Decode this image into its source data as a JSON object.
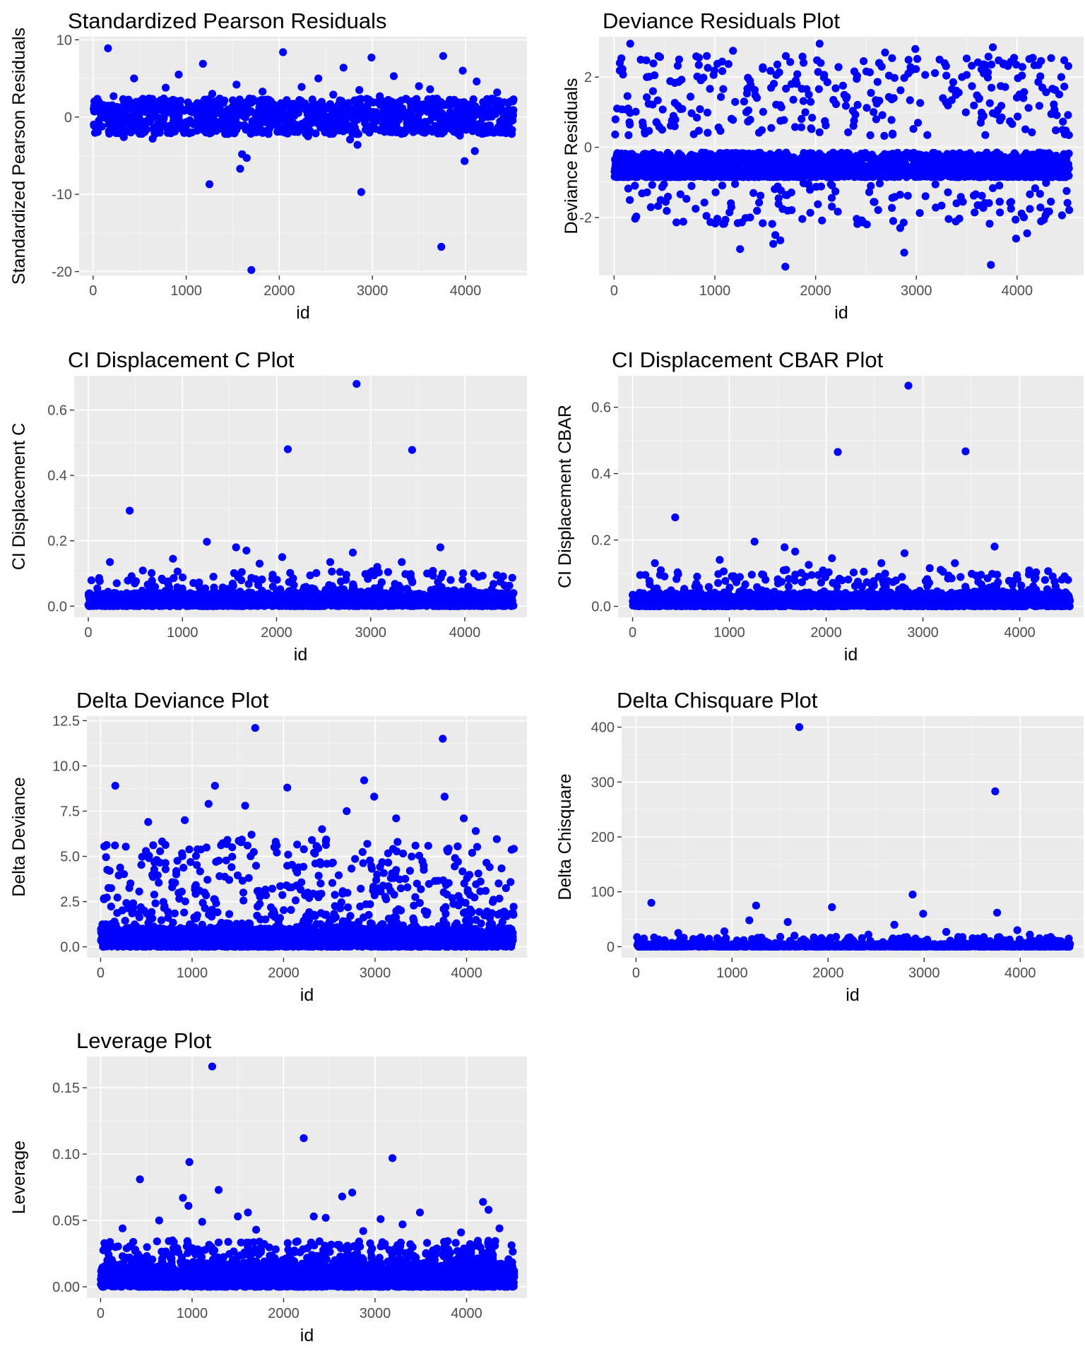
{
  "point_color": "#0000ff",
  "panel_background": "#ebebeb",
  "chart_data": [
    {
      "type": "scatter",
      "title": "Standardized Pearson Residuals",
      "xlabel": "id",
      "ylabel": "Standardized Pearson Residuals",
      "xlim": [
        -150,
        4660
      ],
      "ylim": [
        -20.5,
        10.4
      ],
      "xticks": [
        0,
        1000,
        2000,
        3000,
        4000
      ],
      "xtick_labels": [
        "0",
        "1000",
        "2000",
        "3000",
        "4000"
      ],
      "yticks": [
        -20,
        -10,
        0,
        10
      ],
      "ytick_labels": [
        "-20",
        "-10",
        "0",
        "10"
      ],
      "grid": true,
      "points": [
        [
          160,
          8.9
        ],
        [
          2040,
          8.4
        ],
        [
          3760,
          7.9
        ],
        [
          2990,
          7.7
        ],
        [
          1180,
          6.9
        ],
        [
          2690,
          6.4
        ],
        [
          3970,
          6.0
        ],
        [
          920,
          5.5
        ],
        [
          2420,
          5.0
        ],
        [
          3230,
          5.3
        ],
        [
          440,
          5.0
        ],
        [
          4120,
          4.6
        ],
        [
          1540,
          4.2
        ],
        [
          2240,
          3.9
        ],
        [
          3500,
          4.0
        ],
        [
          780,
          3.8
        ],
        [
          2860,
          3.5
        ],
        [
          3620,
          3.6
        ],
        [
          1820,
          3.3
        ],
        [
          4340,
          3.2
        ],
        [
          1280,
          3.0
        ],
        [
          2580,
          2.9
        ],
        [
          3080,
          2.7
        ],
        [
          220,
          2.7
        ],
        [
          600,
          2.4
        ],
        [
          1680,
          2.4
        ],
        [
          2080,
          2.2
        ],
        [
          3880,
          2.1
        ],
        [
          4480,
          2.0
        ],
        [
          1020,
          1.9
        ],
        [
          2760,
          -2.9
        ],
        [
          640,
          -2.8
        ],
        [
          3940,
          -2.4
        ],
        [
          1450,
          -2.2
        ],
        [
          2310,
          -2.5
        ],
        [
          4400,
          -2.0
        ],
        [
          330,
          -2.6
        ],
        [
          1980,
          -1.9
        ],
        [
          3340,
          -2.1
        ],
        [
          1250,
          -8.7
        ],
        [
          1600,
          -4.8
        ],
        [
          1650,
          -5.3
        ],
        [
          1580,
          -6.7
        ],
        [
          2840,
          -3.6
        ],
        [
          2880,
          -9.7
        ],
        [
          3740,
          -16.8
        ],
        [
          3990,
          -5.7
        ],
        [
          4100,
          -4.4
        ],
        [
          1700,
          -19.8
        ]
      ],
      "band": {
        "x_from": 0,
        "x_to": 4520,
        "y_from": -2.2,
        "y_to": 2.4,
        "count": 1150
      }
    },
    {
      "type": "scatter",
      "title": "Deviance Residuals Plot",
      "xlabel": "id",
      "ylabel": "Deviance Residuals",
      "xlim": [
        -150,
        4660
      ],
      "ylim": [
        -3.65,
        3.15
      ],
      "xticks": [
        0,
        1000,
        2000,
        3000,
        4000
      ],
      "xtick_labels": [
        "0",
        "1000",
        "2000",
        "3000",
        "4000"
      ],
      "yticks": [
        -2,
        0,
        2
      ],
      "ytick_labels": [
        "-2",
        "0",
        "2"
      ],
      "grid": true,
      "points": [
        [
          160,
          2.95
        ],
        [
          2040,
          2.95
        ],
        [
          3760,
          2.85
        ],
        [
          2990,
          2.8
        ],
        [
          1180,
          2.75
        ],
        [
          920,
          2.6
        ],
        [
          2690,
          2.7
        ],
        [
          3970,
          2.55
        ],
        [
          440,
          2.6
        ],
        [
          3230,
          2.5
        ],
        [
          1700,
          -3.4
        ],
        [
          3740,
          -3.35
        ],
        [
          2880,
          -3.0
        ],
        [
          1250,
          -2.9
        ],
        [
          3990,
          -2.6
        ],
        [
          4100,
          -2.45
        ],
        [
          1600,
          -2.5
        ],
        [
          1580,
          -2.75
        ],
        [
          1650,
          -2.65
        ],
        [
          2840,
          -2.3
        ]
      ],
      "upper": {
        "x_from": 0,
        "x_to": 4520,
        "y_from": 0.3,
        "y_to": 2.6,
        "count": 300
      },
      "lower": {
        "x_from": 0,
        "x_to": 4520,
        "y_from": -2.2,
        "y_to": -1.0,
        "count": 140
      },
      "band": {
        "x_from": 0,
        "x_to": 4520,
        "y_from": -0.85,
        "y_to": -0.15,
        "count": 1900
      }
    },
    {
      "type": "scatter",
      "title": "CI Displacement C Plot",
      "xlabel": "id",
      "ylabel": "CI Displacement C",
      "xlim": [
        -150,
        4660
      ],
      "ylim": [
        -0.034,
        0.705
      ],
      "xticks": [
        0,
        1000,
        2000,
        3000,
        4000
      ],
      "xtick_labels": [
        "0",
        "1000",
        "2000",
        "3000",
        "4000"
      ],
      "yticks": [
        0,
        0.2,
        0.4,
        0.6
      ],
      "ytick_labels": [
        "0.0",
        "0.2",
        "0.4",
        "0.6"
      ],
      "grid": true,
      "points": [
        [
          2850,
          0.68
        ],
        [
          2120,
          0.48
        ],
        [
          3440,
          0.478
        ],
        [
          440,
          0.292
        ],
        [
          1260,
          0.197
        ],
        [
          1570,
          0.18
        ],
        [
          3740,
          0.18
        ],
        [
          1680,
          0.17
        ],
        [
          2810,
          0.164
        ],
        [
          2060,
          0.15
        ],
        [
          230,
          0.135
        ],
        [
          900,
          0.145
        ],
        [
          3330,
          0.135
        ],
        [
          1820,
          0.13
        ],
        [
          2570,
          0.135
        ],
        [
          3070,
          0.12
        ],
        [
          4100,
          0.1
        ],
        [
          4340,
          0.095
        ],
        [
          3600,
          0.1
        ]
      ],
      "upper": {
        "x_from": 0,
        "x_to": 4520,
        "y_from": 0.04,
        "y_to": 0.11,
        "count": 180
      },
      "band": {
        "x_from": 0,
        "x_to": 4520,
        "y_from": 0.0,
        "y_to": 0.04,
        "count": 1800
      }
    },
    {
      "type": "scatter",
      "title": "CI Displacement CBAR Plot",
      "xlabel": "id",
      "ylabel": "CI Displacement CBAR",
      "xlim": [
        -150,
        4660
      ],
      "ylim": [
        -0.033,
        0.695
      ],
      "xticks": [
        0,
        1000,
        2000,
        3000,
        4000
      ],
      "xtick_labels": [
        "0",
        "1000",
        "2000",
        "3000",
        "4000"
      ],
      "yticks": [
        0,
        0.2,
        0.4,
        0.6
      ],
      "ytick_labels": [
        "0.0",
        "0.2",
        "0.4",
        "0.6"
      ],
      "grid": true,
      "points": [
        [
          2850,
          0.665
        ],
        [
          2120,
          0.465
        ],
        [
          3440,
          0.467
        ],
        [
          440,
          0.268
        ],
        [
          1260,
          0.195
        ],
        [
          1570,
          0.178
        ],
        [
          3740,
          0.18
        ],
        [
          1680,
          0.165
        ],
        [
          2810,
          0.16
        ],
        [
          2060,
          0.145
        ],
        [
          230,
          0.13
        ],
        [
          900,
          0.14
        ],
        [
          3330,
          0.13
        ],
        [
          1820,
          0.125
        ],
        [
          2570,
          0.13
        ],
        [
          3070,
          0.115
        ],
        [
          4100,
          0.098
        ],
        [
          4340,
          0.09
        ],
        [
          3600,
          0.095
        ]
      ],
      "upper": {
        "x_from": 0,
        "x_to": 4520,
        "y_from": 0.04,
        "y_to": 0.11,
        "count": 180
      },
      "band": {
        "x_from": 0,
        "x_to": 4520,
        "y_from": 0.0,
        "y_to": 0.04,
        "count": 1800
      }
    },
    {
      "type": "scatter",
      "title": "Delta Deviance Plot",
      "xlabel": "id",
      "ylabel": "Delta Deviance",
      "xlim": [
        -150,
        4660
      ],
      "ylim": [
        -0.6,
        12.75
      ],
      "xticks": [
        0,
        1000,
        2000,
        3000,
        4000
      ],
      "xtick_labels": [
        "0",
        "1000",
        "2000",
        "3000",
        "4000"
      ],
      "yticks": [
        0,
        2.5,
        5,
        7.5,
        10,
        12.5
      ],
      "ytick_labels": [
        "0.0",
        "2.5",
        "5.0",
        "7.5",
        "10.0",
        "12.5"
      ],
      "grid": true,
      "points": [
        [
          1690,
          12.1
        ],
        [
          3740,
          11.5
        ],
        [
          2880,
          9.2
        ],
        [
          1250,
          8.9
        ],
        [
          160,
          8.9
        ],
        [
          2040,
          8.8
        ],
        [
          3760,
          8.3
        ],
        [
          2990,
          8.3
        ],
        [
          1180,
          7.9
        ],
        [
          1580,
          7.8
        ],
        [
          2690,
          7.5
        ],
        [
          920,
          7.0
        ],
        [
          3970,
          7.1
        ],
        [
          3230,
          7.1
        ],
        [
          520,
          6.9
        ],
        [
          2420,
          6.5
        ],
        [
          4100,
          6.4
        ],
        [
          1650,
          6.2
        ]
      ],
      "upper": {
        "x_from": 0,
        "x_to": 4520,
        "y_from": 1.0,
        "y_to": 6.0,
        "count": 500
      },
      "band": {
        "x_from": 0,
        "x_to": 4520,
        "y_from": 0.0,
        "y_to": 1.0,
        "count": 1900
      }
    },
    {
      "type": "scatter",
      "title": "Delta Chisquare Plot",
      "xlabel": "id",
      "ylabel": "Delta Chisquare",
      "xlim": [
        -150,
        4660
      ],
      "ylim": [
        -20,
        420
      ],
      "xticks": [
        0,
        1000,
        2000,
        3000,
        4000
      ],
      "xtick_labels": [
        "0",
        "1000",
        "2000",
        "3000",
        "4000"
      ],
      "yticks": [
        0,
        100,
        200,
        300,
        400
      ],
      "ytick_labels": [
        "0",
        "100",
        "200",
        "300",
        "400"
      ],
      "grid": true,
      "points": [
        [
          1700,
          400
        ],
        [
          3740,
          283
        ],
        [
          2880,
          95
        ],
        [
          160,
          80
        ],
        [
          1250,
          75
        ],
        [
          2040,
          72
        ],
        [
          3760,
          62
        ],
        [
          2990,
          60
        ],
        [
          1180,
          48
        ],
        [
          1580,
          45
        ],
        [
          2690,
          40
        ],
        [
          3970,
          30
        ],
        [
          920,
          28
        ],
        [
          3230,
          27
        ],
        [
          440,
          25
        ],
        [
          4100,
          22
        ],
        [
          2420,
          22
        ],
        [
          1650,
          20
        ]
      ],
      "upper": {
        "x_from": 0,
        "x_to": 4520,
        "y_from": 5,
        "y_to": 18,
        "count": 120
      },
      "band": {
        "x_from": 0,
        "x_to": 4520,
        "y_from": 0,
        "y_to": 5,
        "count": 1500
      }
    },
    {
      "type": "scatter",
      "title": "Leverage Plot",
      "xlabel": "id",
      "ylabel": "Leverage",
      "xlim": [
        -150,
        4660
      ],
      "ylim": [
        -0.0085,
        0.1735
      ],
      "xticks": [
        0,
        1000,
        2000,
        3000,
        4000
      ],
      "xtick_labels": [
        "0",
        "1000",
        "2000",
        "3000",
        "4000"
      ],
      "yticks": [
        0,
        0.05,
        0.1,
        0.15
      ],
      "ytick_labels": [
        "0.00",
        "0.05",
        "0.10",
        "0.15"
      ],
      "grid": true,
      "points": [
        [
          1220,
          0.166
        ],
        [
          2220,
          0.112
        ],
        [
          3190,
          0.097
        ],
        [
          970,
          0.094
        ],
        [
          430,
          0.081
        ],
        [
          1290,
          0.073
        ],
        [
          2750,
          0.071
        ],
        [
          2640,
          0.068
        ],
        [
          900,
          0.067
        ],
        [
          4180,
          0.064
        ],
        [
          960,
          0.061
        ],
        [
          1610,
          0.056
        ],
        [
          3490,
          0.056
        ],
        [
          4240,
          0.058
        ],
        [
          1500,
          0.053
        ],
        [
          2330,
          0.053
        ],
        [
          2460,
          0.052
        ],
        [
          640,
          0.05
        ],
        [
          3060,
          0.051
        ],
        [
          1110,
          0.049
        ],
        [
          3300,
          0.047
        ],
        [
          1700,
          0.043
        ],
        [
          2870,
          0.042
        ],
        [
          240,
          0.044
        ],
        [
          3940,
          0.041
        ],
        [
          4360,
          0.044
        ]
      ],
      "upper": {
        "x_from": 0,
        "x_to": 4520,
        "y_from": 0.015,
        "y_to": 0.035,
        "count": 450
      },
      "band": {
        "x_from": 0,
        "x_to": 4520,
        "y_from": 0.0,
        "y_to": 0.015,
        "count": 2000
      }
    }
  ]
}
